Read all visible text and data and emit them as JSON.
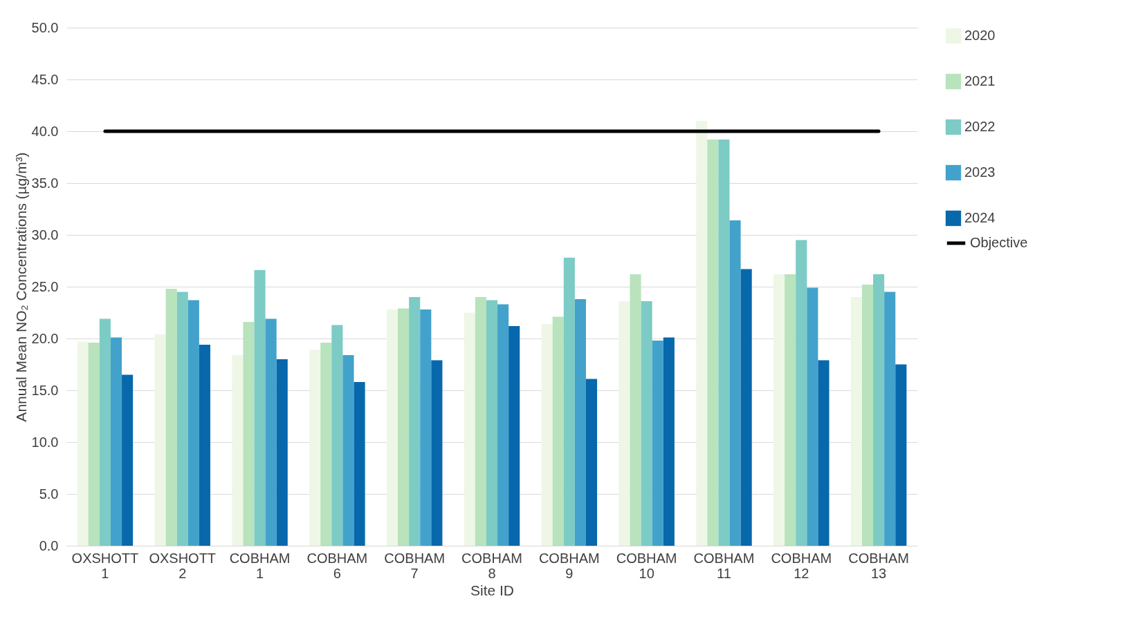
{
  "chart_data": {
    "type": "bar",
    "xlabel": "Site ID",
    "ylabel": "Annual Mean NO₂ Concentrations (µg/m³)",
    "categories": [
      "OXSHOTT 1",
      "OXSHOTT 2",
      "COBHAM 1",
      "COBHAM 6",
      "COBHAM 7",
      "COBHAM 8",
      "COBHAM 9",
      "COBHAM 10",
      "COBHAM 11",
      "COBHAM 12",
      "COBHAM 13"
    ],
    "series": [
      {
        "name": "2020",
        "color": "#eef7e6",
        "values": [
          19.7,
          20.4,
          18.4,
          18.9,
          22.8,
          22.5,
          21.4,
          23.6,
          41.0,
          26.2,
          24.0
        ]
      },
      {
        "name": "2021",
        "color": "#b8e3bc",
        "values": [
          19.6,
          24.8,
          21.6,
          19.6,
          22.9,
          24.0,
          22.1,
          26.2,
          39.2,
          26.2,
          25.2
        ]
      },
      {
        "name": "2022",
        "color": "#7ccbc5",
        "values": [
          21.9,
          24.5,
          26.6,
          21.3,
          24.0,
          23.7,
          27.8,
          23.6,
          39.2,
          29.5,
          26.2
        ]
      },
      {
        "name": "2023",
        "color": "#43a2cb",
        "values": [
          20.1,
          23.7,
          21.9,
          18.4,
          22.8,
          23.3,
          23.8,
          19.8,
          31.4,
          24.9,
          24.5
        ]
      },
      {
        "name": "2024",
        "color": "#0868ac",
        "values": [
          16.5,
          19.4,
          18.0,
          15.8,
          17.9,
          21.2,
          16.1,
          20.1,
          26.7,
          17.9,
          17.5
        ]
      },
      {
        "name": "Objective",
        "type": "line",
        "color": "#000000",
        "values": [
          40,
          40,
          40,
          40,
          40,
          40,
          40,
          40,
          40,
          40,
          40
        ]
      }
    ],
    "ylim": [
      0,
      50
    ],
    "yticks": [
      {
        "value": 0,
        "label": "0.0"
      },
      {
        "value": 5,
        "label": "5.0"
      },
      {
        "value": 10,
        "label": "10.0"
      },
      {
        "value": 15,
        "label": "15.0"
      },
      {
        "value": 20,
        "label": "20.0"
      },
      {
        "value": 25,
        "label": "25.0"
      },
      {
        "value": 30,
        "label": "30.0"
      },
      {
        "value": 35,
        "label": "35.0"
      },
      {
        "value": 40,
        "label": "40.0"
      },
      {
        "value": 45,
        "label": "45.0"
      },
      {
        "value": 50,
        "label": "50.0"
      }
    ],
    "grid": "y",
    "legend": "right"
  }
}
